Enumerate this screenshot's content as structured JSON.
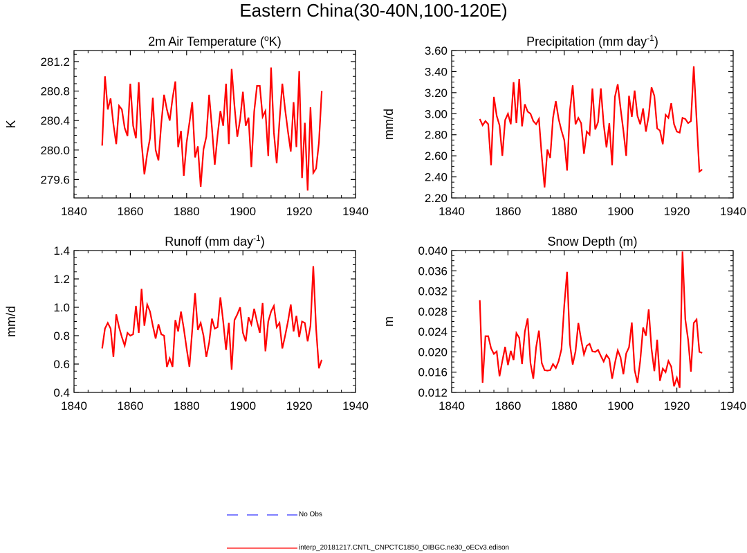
{
  "figure": {
    "title": "Eastern China(30-40N,100-120E)"
  },
  "legend": {
    "items": [
      {
        "label": "No Obs",
        "color": "#3333ff",
        "style": "dashed"
      },
      {
        "label": "interp_20181217.CNTL_CNPCTC1850_OIBGC.ne30_oECv3.edison",
        "color": "#ff0000",
        "style": "solid"
      }
    ]
  },
  "chart_data": [
    {
      "type": "line",
      "title": "2m Air Temperature (°K)",
      "title_main": "2m Air Temperature (",
      "title_sup": "o",
      "title_tail": "K)",
      "xlabel": "",
      "ylabel": "K",
      "xlim": [
        1840,
        1940
      ],
      "ylim": [
        279.35,
        281.35
      ],
      "xticks": [
        1840,
        1860,
        1880,
        1900,
        1920,
        1940
      ],
      "yticks": [
        279.6,
        280.0,
        280.4,
        280.8,
        281.2
      ],
      "ytick_labels": [
        "279.6",
        "280.0",
        "280.4",
        "280.8",
        "281.2"
      ],
      "series": [
        {
          "name": "interp_20181217.CNTL_CNPCTC1850_OIBGC.ne30_oECv3.edison",
          "color": "#ff0000",
          "x_start": 1850,
          "values": [
            280.06,
            281.0,
            280.55,
            280.7,
            280.35,
            280.08,
            280.6,
            280.55,
            280.3,
            280.19,
            280.9,
            280.33,
            280.16,
            280.92,
            280.1,
            279.67,
            279.95,
            280.16,
            280.71,
            280.0,
            279.86,
            280.36,
            280.75,
            280.55,
            280.4,
            280.7,
            280.93,
            280.04,
            280.26,
            279.65,
            280.1,
            280.37,
            280.65,
            279.9,
            280.05,
            279.5,
            280.01,
            280.18,
            280.75,
            280.3,
            279.8,
            280.2,
            280.53,
            280.33,
            280.9,
            280.08,
            281.1,
            280.6,
            280.18,
            280.41,
            280.79,
            280.33,
            280.44,
            279.77,
            280.52,
            280.87,
            280.87,
            280.45,
            280.53,
            279.92,
            281.12,
            280.24,
            279.82,
            280.4,
            280.9,
            280.55,
            280.25,
            279.98,
            280.65,
            280.04,
            281.07,
            279.62,
            280.37,
            279.45,
            280.58,
            279.69,
            279.75,
            280.1,
            280.8
          ]
        }
      ]
    },
    {
      "type": "line",
      "title": "Precipitation (mm day-1)",
      "title_main": "Precipitation (mm day",
      "title_sup": "-1",
      "title_tail": ")",
      "xlabel": "",
      "ylabel": "mm/d",
      "xlim": [
        1840,
        1940
      ],
      "ylim": [
        2.2,
        3.6
      ],
      "xticks": [
        1840,
        1860,
        1880,
        1900,
        1920,
        1940
      ],
      "yticks": [
        2.2,
        2.4,
        2.6,
        2.8,
        3.0,
        3.2,
        3.4,
        3.6
      ],
      "ytick_labels": [
        "2.20",
        "2.40",
        "2.60",
        "2.80",
        "3.00",
        "3.20",
        "3.40",
        "3.60"
      ],
      "series": [
        {
          "name": "interp_20181217.CNTL_CNPCTC1850_OIBGC.ne30_oECv3.edison",
          "color": "#ff0000",
          "x_start": 1850,
          "values": [
            2.95,
            2.89,
            2.93,
            2.9,
            2.51,
            3.16,
            2.98,
            2.89,
            2.6,
            2.94,
            3.0,
            2.9,
            3.3,
            2.91,
            3.33,
            2.88,
            3.09,
            3.02,
            3.0,
            2.93,
            2.9,
            2.95,
            2.6,
            2.3,
            2.66,
            2.58,
            2.96,
            3.12,
            2.95,
            2.84,
            2.75,
            2.46,
            3.03,
            3.27,
            2.9,
            2.96,
            2.91,
            2.62,
            2.83,
            2.8,
            3.24,
            2.85,
            2.92,
            3.24,
            2.9,
            2.68,
            2.91,
            2.51,
            3.16,
            3.28,
            3.05,
            2.84,
            2.6,
            3.17,
            2.97,
            3.22,
            2.98,
            2.9,
            3.05,
            2.83,
            2.98,
            3.25,
            3.17,
            2.86,
            2.84,
            2.71,
            2.99,
            2.96,
            3.1,
            2.9,
            2.83,
            2.82,
            2.96,
            2.95,
            2.91,
            2.93,
            3.45,
            2.95,
            2.45,
            2.47
          ]
        }
      ]
    },
    {
      "type": "line",
      "title": "Runoff (mm day-1)",
      "title_main": "Runoff (mm day",
      "title_sup": "-1",
      "title_tail": ")",
      "xlabel": "",
      "ylabel": "mm/d",
      "xlim": [
        1840,
        1940
      ],
      "ylim": [
        0.4,
        1.4
      ],
      "xticks": [
        1840,
        1860,
        1880,
        1900,
        1920,
        1940
      ],
      "yticks": [
        0.4,
        0.6,
        0.8,
        1.0,
        1.2,
        1.4
      ],
      "ytick_labels": [
        "0.4",
        "0.6",
        "0.8",
        "1.0",
        "1.2",
        "1.4"
      ],
      "series": [
        {
          "name": "interp_20181217.CNTL_CNPCTC1850_OIBGC.ne30_oECv3.edison",
          "color": "#ff0000",
          "x_start": 1850,
          "values": [
            0.71,
            0.85,
            0.89,
            0.85,
            0.65,
            0.95,
            0.86,
            0.79,
            0.73,
            0.82,
            0.8,
            0.81,
            1.01,
            0.82,
            1.13,
            0.87,
            1.02,
            0.97,
            0.87,
            0.78,
            0.88,
            0.81,
            0.8,
            0.58,
            0.64,
            0.58,
            0.91,
            0.83,
            0.97,
            0.85,
            0.71,
            0.58,
            0.84,
            1.1,
            0.84,
            0.89,
            0.8,
            0.65,
            0.75,
            0.92,
            0.85,
            0.86,
            1.07,
            0.9,
            0.7,
            0.89,
            0.56,
            0.91,
            0.95,
            1.0,
            0.82,
            0.76,
            0.93,
            0.88,
            0.99,
            0.9,
            0.82,
            1.03,
            0.69,
            0.9,
            0.97,
            1.01,
            0.86,
            0.89,
            0.71,
            0.8,
            0.9,
            1.02,
            0.83,
            0.94,
            0.79,
            0.9,
            0.89,
            0.76,
            0.87,
            1.29,
            0.85,
            0.57,
            0.63
          ]
        }
      ]
    },
    {
      "type": "line",
      "title": "Snow Depth (m)",
      "title_main": "Snow Depth (m)",
      "title_sup": "",
      "title_tail": "",
      "xlabel": "",
      "ylabel": "m",
      "xlim": [
        1840,
        1940
      ],
      "ylim": [
        0.012,
        0.04
      ],
      "xticks": [
        1840,
        1860,
        1880,
        1900,
        1920,
        1940
      ],
      "yticks": [
        0.012,
        0.016,
        0.02,
        0.024,
        0.028,
        0.032,
        0.036,
        0.04
      ],
      "ytick_labels": [
        "0.012",
        "0.016",
        "0.020",
        "0.024",
        "0.028",
        "0.032",
        "0.036",
        "0.040"
      ],
      "series": [
        {
          "name": "interp_20181217.CNTL_CNPCTC1850_OIBGC.ne30_oECv3.edison",
          "color": "#ff0000",
          "x_start": 1850,
          "values": [
            0.0302,
            0.0139,
            0.0231,
            0.0231,
            0.0207,
            0.0196,
            0.0201,
            0.0152,
            0.0182,
            0.021,
            0.0174,
            0.0202,
            0.0184,
            0.0237,
            0.0228,
            0.0176,
            0.024,
            0.0266,
            0.0178,
            0.0147,
            0.0209,
            0.0242,
            0.0178,
            0.0164,
            0.0163,
            0.0164,
            0.0176,
            0.0168,
            0.0182,
            0.0205,
            0.0292,
            0.0358,
            0.0216,
            0.0175,
            0.0201,
            0.0257,
            0.0224,
            0.0195,
            0.0212,
            0.0216,
            0.0201,
            0.02,
            0.0204,
            0.0192,
            0.0181,
            0.0194,
            0.0186,
            0.0147,
            0.0178,
            0.0203,
            0.0189,
            0.0156,
            0.0197,
            0.0209,
            0.0258,
            0.0164,
            0.0139,
            0.0183,
            0.0248,
            0.0232,
            0.0284,
            0.0206,
            0.0162,
            0.0224,
            0.0143,
            0.0167,
            0.016,
            0.0182,
            0.0171,
            0.0132,
            0.0149,
            0.0129,
            0.0398,
            0.0264,
            0.0224,
            0.0161,
            0.0257,
            0.0264,
            0.02,
            0.0198
          ]
        }
      ]
    }
  ]
}
